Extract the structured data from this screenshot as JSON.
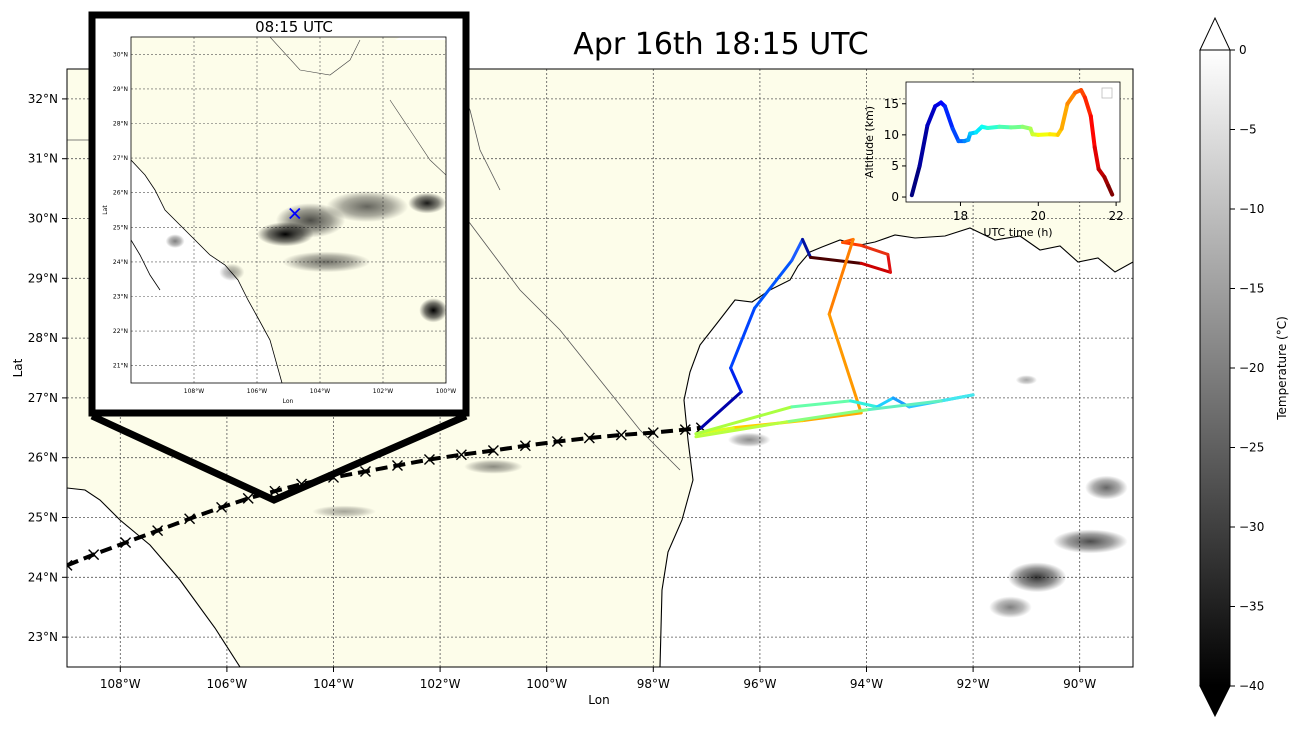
{
  "main_map": {
    "title": "Apr 16th 18:15 UTC",
    "xlabel": "Lon",
    "ylabel": "Lat",
    "lon_range": [
      -109.0,
      -89.0
    ],
    "lat_range": [
      22.5,
      32.5
    ],
    "lon_ticks": [
      {
        "value": -108,
        "label": "108°W"
      },
      {
        "value": -106,
        "label": "106°W"
      },
      {
        "value": -104,
        "label": "104°W"
      },
      {
        "value": -102,
        "label": "102°W"
      },
      {
        "value": -100,
        "label": "100°W"
      },
      {
        "value": -98,
        "label": "98°W"
      },
      {
        "value": -96,
        "label": "96°W"
      },
      {
        "value": -94,
        "label": "94°W"
      },
      {
        "value": -92,
        "label": "92°W"
      },
      {
        "value": -90,
        "label": "90°W"
      }
    ],
    "lat_ticks": [
      {
        "value": 23,
        "label": "23°N"
      },
      {
        "value": 24,
        "label": "24°N"
      },
      {
        "value": 25,
        "label": "25°N"
      },
      {
        "value": 26,
        "label": "26°N"
      },
      {
        "value": 27,
        "label": "27°N"
      },
      {
        "value": 28,
        "label": "28°N"
      },
      {
        "value": 29,
        "label": "29°N"
      },
      {
        "value": 30,
        "label": "30°N"
      },
      {
        "value": 31,
        "label": "31°N"
      },
      {
        "value": 32,
        "label": "32°N"
      }
    ],
    "land_color": "#fdfdea",
    "satellite_track": {
      "lon": [
        -109.0,
        -108.5,
        -107.9,
        -107.3,
        -106.7,
        -106.1,
        -105.6,
        -105.1,
        -104.6,
        -104.0,
        -103.4,
        -102.8,
        -102.2,
        -101.6,
        -101.0,
        -100.4,
        -99.8,
        -99.2,
        -98.6,
        -98.0,
        -97.4,
        -97.1
      ],
      "lat": [
        24.2,
        24.38,
        24.58,
        24.78,
        24.98,
        25.17,
        25.32,
        25.44,
        25.56,
        25.67,
        25.77,
        25.87,
        25.97,
        26.05,
        26.12,
        26.2,
        26.27,
        26.33,
        26.38,
        26.42,
        26.47,
        26.5
      ]
    },
    "flight_track": {
      "lon": [
        -97.1,
        -96.35,
        -96.55,
        -96.1,
        -95.4,
        -95.2,
        -95.05,
        -94.1,
        -93.55,
        -93.6,
        -94.1,
        -94.45,
        -94.25,
        -94.7,
        -94.1,
        -95.2,
        -96.5,
        -97.2,
        -95.4,
        -94.3,
        -93.8,
        -93.5,
        -93.2,
        -92.0,
        -92.6,
        -94.0,
        -95.5,
        -97.2
      ],
      "lat": [
        26.5,
        27.1,
        27.5,
        28.5,
        29.3,
        29.65,
        29.35,
        29.25,
        29.1,
        29.4,
        29.55,
        29.6,
        29.65,
        28.4,
        26.75,
        26.62,
        26.5,
        26.4,
        26.85,
        26.95,
        26.85,
        27.0,
        26.85,
        27.05,
        26.95,
        26.8,
        26.6,
        26.35
      ],
      "colors": [
        "#0000aa",
        "#0022ee",
        "#0044ff",
        "#0055ff",
        "#1a5bff",
        "#0010a0",
        "#4a0000",
        "#cc0000",
        "#e01010",
        "#e83010",
        "#ff3a00",
        "#ff5500",
        "#ff7f00",
        "#ff9900",
        "#ffaa00",
        "#ffd000",
        "#d8ff20",
        "#aaff40",
        "#66ffaa",
        "#33f0dd",
        "#1ecfff",
        "#1aa0ff",
        "#2ac8ff",
        "#44e8ee",
        "#60f0c0",
        "#88ff80",
        "#b8ff40",
        "#e0ff20"
      ]
    },
    "cloud_clusters": [
      {
        "lon": -90.8,
        "lat": 24.0,
        "rlon": 0.55,
        "rlat": 0.25,
        "intensity": 0.8
      },
      {
        "lon": -89.8,
        "lat": 24.6,
        "rlon": 0.7,
        "rlat": 0.2,
        "intensity": 0.7
      },
      {
        "lon": -89.5,
        "lat": 25.5,
        "rlon": 0.4,
        "rlat": 0.2,
        "intensity": 0.6
      },
      {
        "lon": -91.3,
        "lat": 23.5,
        "rlon": 0.4,
        "rlat": 0.18,
        "intensity": 0.5
      },
      {
        "lon": -96.2,
        "lat": 26.3,
        "rlon": 0.4,
        "rlat": 0.12,
        "intensity": 0.45
      },
      {
        "lon": -101.0,
        "lat": 25.85,
        "rlon": 0.55,
        "rlat": 0.12,
        "intensity": 0.45
      },
      {
        "lon": -103.8,
        "lat": 25.1,
        "rlon": 0.6,
        "rlat": 0.1,
        "intensity": 0.35
      },
      {
        "lon": -91.0,
        "lat": 27.3,
        "rlon": 0.2,
        "rlat": 0.08,
        "intensity": 0.35
      }
    ]
  },
  "inset_map": {
    "title": "08:15 UTC",
    "xlabel": "Lon",
    "ylabel": "Lat",
    "lon_range": [
      -110.0,
      -100.0
    ],
    "lat_range": [
      20.5,
      30.5
    ],
    "lon_ticks": [
      {
        "value": -108,
        "label": "108°W"
      },
      {
        "value": -106,
        "label": "106°W"
      },
      {
        "value": -104,
        "label": "104°W"
      },
      {
        "value": -102,
        "label": "102°W"
      },
      {
        "value": -100,
        "label": "100°W"
      }
    ],
    "lat_ticks": [
      {
        "value": 21,
        "label": "21°N"
      },
      {
        "value": 22,
        "label": "22°N"
      },
      {
        "value": 23,
        "label": "23°N"
      },
      {
        "value": 24,
        "label": "24°N"
      },
      {
        "value": 25,
        "label": "25°N"
      },
      {
        "value": 26,
        "label": "26°N"
      },
      {
        "value": 27,
        "label": "27°N"
      },
      {
        "value": 28,
        "label": "28°N"
      },
      {
        "value": 29,
        "label": "29°N"
      },
      {
        "value": 30,
        "label": "30°N"
      }
    ],
    "marker": {
      "lon": -104.8,
      "lat": 25.4,
      "color": "#0000ff"
    },
    "cloud_clusters": [
      {
        "lon": -105.1,
        "lat": 24.8,
        "rlon": 0.9,
        "rlat": 0.35,
        "intensity": 1.0
      },
      {
        "lon": -104.3,
        "lat": 25.2,
        "rlon": 1.1,
        "rlat": 0.5,
        "intensity": 0.7
      },
      {
        "lon": -102.5,
        "lat": 25.6,
        "rlon": 1.3,
        "rlat": 0.45,
        "intensity": 0.6
      },
      {
        "lon": -100.6,
        "lat": 25.7,
        "rlon": 0.6,
        "rlat": 0.3,
        "intensity": 0.9
      },
      {
        "lon": -103.8,
        "lat": 24.0,
        "rlon": 1.4,
        "rlat": 0.3,
        "intensity": 0.55
      },
      {
        "lon": -100.4,
        "lat": 22.6,
        "rlon": 0.45,
        "rlat": 0.35,
        "intensity": 1.0
      },
      {
        "lon": -106.8,
        "lat": 23.7,
        "rlon": 0.4,
        "rlat": 0.25,
        "intensity": 0.4
      },
      {
        "lon": -108.6,
        "lat": 24.6,
        "rlon": 0.3,
        "rlat": 0.2,
        "intensity": 0.5
      }
    ]
  },
  "altitude_inset": {
    "xlabel": "UTC time (h)",
    "ylabel": "Altitude (km)",
    "xlim": [
      16.6,
      22.1
    ],
    "ylim": [
      -0.8,
      18.5
    ],
    "x_ticks": [
      18,
      20,
      22
    ],
    "y_ticks": [
      0,
      5,
      10,
      15
    ],
    "series": {
      "x": [
        16.75,
        16.95,
        17.15,
        17.35,
        17.5,
        17.6,
        17.8,
        17.95,
        18.1,
        18.2,
        18.25,
        18.4,
        18.55,
        18.7,
        19.0,
        19.3,
        19.6,
        19.8,
        19.85,
        20.0,
        20.3,
        20.5,
        20.6,
        20.75,
        20.95,
        21.1,
        21.2,
        21.35,
        21.45,
        21.55,
        21.7,
        21.8,
        21.9
      ],
      "y": [
        0.3,
        5.0,
        11.5,
        14.6,
        15.2,
        14.6,
        11.0,
        9.0,
        9.0,
        9.2,
        10.2,
        10.4,
        11.3,
        11.1,
        11.3,
        11.2,
        11.3,
        11.0,
        10.1,
        10.0,
        10.1,
        10.0,
        11.0,
        15.0,
        16.8,
        17.2,
        16.0,
        13.0,
        8.0,
        4.5,
        3.2,
        1.8,
        0.4
      ]
    }
  },
  "colorbar": {
    "label": "Temperature (°C)",
    "range": [
      -40,
      0
    ],
    "ticks": [
      0,
      -5,
      -10,
      -15,
      -20,
      -25,
      -30,
      -35,
      -40
    ]
  }
}
